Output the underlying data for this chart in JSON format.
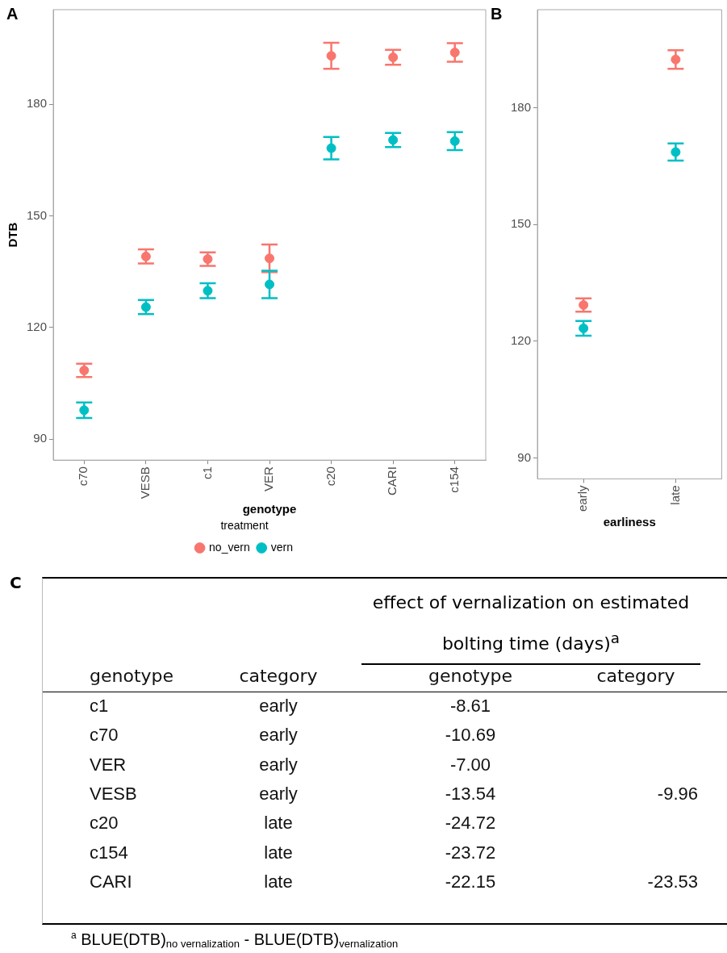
{
  "chart_data": [
    {
      "type": "scatter",
      "title": "A",
      "xlabel": "genotype",
      "ylabel": "DTB",
      "categories": [
        "c70",
        "VESB",
        "c1",
        "VER",
        "c20",
        "CARI",
        "c154"
      ],
      "ylim": [
        84.4,
        205.4
      ],
      "yticks": [
        90,
        120,
        150,
        180
      ],
      "grid": false,
      "legend": "bottom",
      "legend_title": "treatment",
      "series": [
        {
          "name": "no_vern",
          "color": "#f8766d",
          "values": [
            108.5,
            139.1,
            138.4,
            138.6,
            193.0,
            192.6,
            193.9
          ],
          "errors": [
            1.8,
            1.9,
            1.8,
            3.7,
            3.5,
            2.0,
            2.5
          ]
        },
        {
          "name": "vern",
          "color": "#00bfc4",
          "values": [
            97.8,
            125.5,
            129.9,
            131.6,
            168.2,
            170.4,
            170.1
          ],
          "errors": [
            2.1,
            1.9,
            2.0,
            3.7,
            3.0,
            1.9,
            2.4
          ]
        }
      ]
    },
    {
      "type": "scatter",
      "title": "B",
      "xlabel": "earliness",
      "categories": [
        "early",
        "late"
      ],
      "ylim": [
        84.6,
        205.2
      ],
      "yticks": [
        90,
        120,
        150,
        180
      ],
      "grid": false,
      "legend": false,
      "series": [
        {
          "color": "#f8766d",
          "values": [
            129.3,
            192.4
          ],
          "errors": [
            1.7,
            2.4
          ]
        },
        {
          "color": "#00bfc4",
          "values": [
            123.3,
            168.6
          ],
          "errors": [
            1.9,
            2.2
          ]
        }
      ]
    },
    {
      "type": "other",
      "title": "C",
      "subtitle": "effect of vernalization on estimated bolting time (days)$^{a}$",
      "categories": [
        "genotype",
        "category",
        "genotype",
        "category"
      ],
      "cell_labels": [
        [
          "c1",
          "early",
          "-8.61",
          null
        ],
        [
          "c70",
          "early",
          "-10.69",
          null
        ],
        [
          "VER",
          "early",
          "-7.00",
          null
        ],
        [
          "VESB",
          "early",
          "-13.54",
          "-9.96"
        ],
        [
          "c20",
          "late",
          "-24.72",
          null
        ],
        [
          "c154",
          "late",
          "-23.72",
          null
        ],
        [
          "CARI",
          "late",
          "-22.15",
          "-23.53"
        ]
      ],
      "annotations": [
        "$^{a}$ BLUE(DTB)$_{no vernalization}$ - BLUE(DTB)$_{vernalization}$"
      ]
    }
  ]
}
